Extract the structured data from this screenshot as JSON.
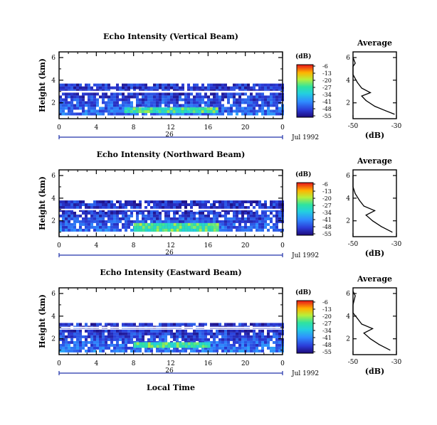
{
  "figure": {
    "xlabel_bottom": "Local Time",
    "date_label": "Jul 1992",
    "day_label": "26"
  },
  "chart_data": [
    {
      "type": "heatmap",
      "title": "Echo Intensity (Vertical Beam)",
      "ylabel": "Height (km)",
      "xlabel": "",
      "x_unit": "hour (local time)",
      "xlim": [
        0,
        24
      ],
      "ylim": [
        0.6,
        6.5
      ],
      "xticks": [
        "0",
        "4",
        "8",
        "12",
        "16",
        "20",
        "0"
      ],
      "yticks": [
        "2",
        "4",
        "6"
      ],
      "colorbar": {
        "unit": "(dB)",
        "ticks": [
          "-6",
          "-13",
          "-20",
          "-27",
          "-34",
          "-41",
          "-48",
          "-55"
        ],
        "range": [
          -55,
          -6
        ]
      },
      "echo_layers": [
        {
          "name": "lower layer",
          "x": [
            0,
            24
          ],
          "bottom_km": 1.0,
          "top_km": 2.9
        },
        {
          "name": "upper layer",
          "x": [
            0,
            24
          ],
          "bottom_km": 3.0,
          "top_km": 3.7
        },
        {
          "name": "strong core",
          "x": [
            7,
            17
          ],
          "bottom_km": 1.1,
          "top_km": 1.6,
          "peak_db": -20
        }
      ],
      "profile": {
        "title": "Average",
        "xlabel": "(dB)",
        "xticks": [
          "-50",
          "-30"
        ],
        "xlim": [
          -50,
          -30
        ],
        "ylim": [
          0.6,
          6.5
        ],
        "yticks": [
          "2",
          "4",
          "6"
        ],
        "points": [
          [
            -31,
            1.0
          ],
          [
            -35,
            1.3
          ],
          [
            -40,
            1.7
          ],
          [
            -44,
            2.2
          ],
          [
            -46,
            2.6
          ],
          [
            -42,
            2.9
          ],
          [
            -46,
            3.3
          ],
          [
            -48,
            3.8
          ],
          [
            -50,
            4.5
          ],
          [
            -50,
            5.2
          ],
          [
            -49,
            5.5
          ],
          [
            -50,
            6.0
          ]
        ]
      }
    },
    {
      "type": "heatmap",
      "title": "Echo Intensity (Northward Beam)",
      "ylabel": "Height (km)",
      "xlabel": "",
      "x_unit": "hour (local time)",
      "xlim": [
        0,
        24
      ],
      "ylim": [
        0.6,
        6.5
      ],
      "xticks": [
        "0",
        "4",
        "8",
        "12",
        "16",
        "20",
        "0"
      ],
      "yticks": [
        "2",
        "4",
        "6"
      ],
      "colorbar": {
        "unit": "(dB)",
        "ticks": [
          "-6",
          "-13",
          "-20",
          "-27",
          "-34",
          "-41",
          "-48",
          "-55"
        ],
        "range": [
          -55,
          -6
        ]
      },
      "echo_layers": [
        {
          "name": "lower layer",
          "x": [
            0,
            24
          ],
          "bottom_km": 1.1,
          "top_km": 2.8
        },
        {
          "name": "upper layer",
          "x": [
            0,
            24
          ],
          "bottom_km": 2.9,
          "top_km": 3.8
        },
        {
          "name": "strong core",
          "x": [
            8,
            17
          ],
          "bottom_km": 1.2,
          "top_km": 1.8,
          "peak_db": -20
        }
      ],
      "profile": {
        "title": "Average",
        "xlabel": "(dB)",
        "xticks": [
          "-50",
          "-30"
        ],
        "xlim": [
          -50,
          -30
        ],
        "ylim": [
          0.6,
          6.5
        ],
        "yticks": [
          "2",
          "4",
          "6"
        ],
        "points": [
          [
            -32,
            1.0
          ],
          [
            -37,
            1.5
          ],
          [
            -41,
            2.0
          ],
          [
            -44,
            2.5
          ],
          [
            -40,
            2.9
          ],
          [
            -45,
            3.3
          ],
          [
            -47,
            3.8
          ],
          [
            -49,
            4.4
          ],
          [
            -50,
            5.0
          ],
          [
            -50,
            6.0
          ]
        ]
      }
    },
    {
      "type": "heatmap",
      "title": "Echo Intensity (Eastward Beam)",
      "ylabel": "Height (km)",
      "xlabel": "",
      "x_unit": "hour (local time)",
      "xlim": [
        0,
        24
      ],
      "ylim": [
        0.6,
        6.5
      ],
      "xticks": [
        "0",
        "4",
        "8",
        "12",
        "16",
        "20",
        "0"
      ],
      "yticks": [
        "2",
        "4",
        "6"
      ],
      "colorbar": {
        "unit": "(dB)",
        "ticks": [
          "-6",
          "-13",
          "-20",
          "-27",
          "-34",
          "-41",
          "-48",
          "-55"
        ],
        "range": [
          -55,
          -6
        ]
      },
      "echo_layers": [
        {
          "name": "lower layer",
          "x": [
            0,
            24
          ],
          "bottom_km": 1.0,
          "top_km": 2.8
        },
        {
          "name": "upper layer",
          "x": [
            0,
            24
          ],
          "bottom_km": 2.9,
          "top_km": 3.4
        },
        {
          "name": "strong core",
          "x": [
            8,
            16
          ],
          "bottom_km": 1.2,
          "top_km": 1.7,
          "peak_db": -20
        }
      ],
      "profile": {
        "title": "Average",
        "xlabel": "(dB)",
        "xticks": [
          "-50",
          "-30"
        ],
        "xlim": [
          -50,
          -30
        ],
        "ylim": [
          0.6,
          6.5
        ],
        "yticks": [
          "2",
          "4",
          "6"
        ],
        "points": [
          [
            -33,
            1.0
          ],
          [
            -38,
            1.5
          ],
          [
            -42,
            2.0
          ],
          [
            -45,
            2.5
          ],
          [
            -41,
            2.9
          ],
          [
            -46,
            3.3
          ],
          [
            -48,
            3.8
          ],
          [
            -50,
            4.3
          ],
          [
            -50,
            5.0
          ],
          [
            -49,
            5.8
          ],
          [
            -50,
            6.2
          ]
        ]
      }
    }
  ]
}
